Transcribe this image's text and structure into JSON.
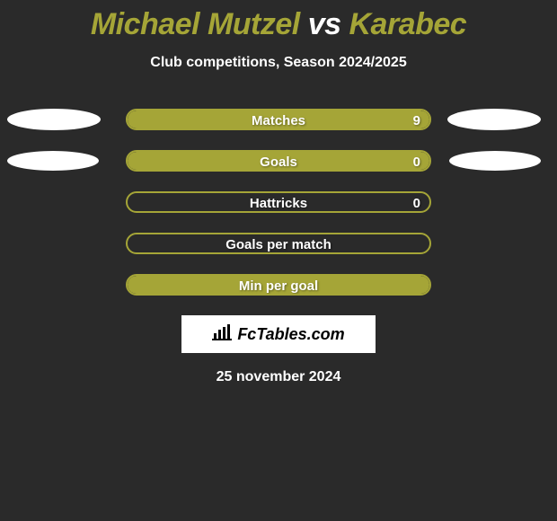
{
  "title": {
    "player1": "Michael Mutzel",
    "vs": "vs",
    "player2": "Karabec",
    "fontsize": 34,
    "color_player": "#a5a537",
    "color_vs": "#ffffff"
  },
  "subtitle": {
    "text": "Club competitions, Season 2024/2025",
    "fontsize": 16,
    "color": "#ffffff"
  },
  "background_color": "#2a2a2a",
  "bar_area": {
    "track_width": 340,
    "track_height": 24,
    "border_radius": 12,
    "label_fontsize": 15
  },
  "rows": [
    {
      "label": "Matches",
      "left_value": null,
      "right_value": "9",
      "left_fill_pct": 0,
      "right_fill_pct": 100,
      "left_fill_color": "#a5a537",
      "right_fill_color": "#a5a537",
      "border_color": "#a5a537",
      "left_ellipse": {
        "width": 104,
        "height": 24,
        "color": "#ffffff"
      },
      "right_ellipse": {
        "width": 104,
        "height": 24,
        "color": "#ffffff"
      }
    },
    {
      "label": "Goals",
      "left_value": null,
      "right_value": "0",
      "left_fill_pct": 0,
      "right_fill_pct": 100,
      "left_fill_color": "#a5a537",
      "right_fill_color": "#a5a537",
      "border_color": "#a5a537",
      "left_ellipse": {
        "width": 102,
        "height": 22,
        "color": "#ffffff"
      },
      "right_ellipse": {
        "width": 102,
        "height": 22,
        "color": "#ffffff"
      }
    },
    {
      "label": "Hattricks",
      "left_value": null,
      "right_value": "0",
      "left_fill_pct": 0,
      "right_fill_pct": 0,
      "left_fill_color": "#a5a537",
      "right_fill_color": "#a5a537",
      "border_color": "#a5a537",
      "left_ellipse": null,
      "right_ellipse": null
    },
    {
      "label": "Goals per match",
      "left_value": null,
      "right_value": null,
      "left_fill_pct": 0,
      "right_fill_pct": 0,
      "left_fill_color": "#a5a537",
      "right_fill_color": "#a5a537",
      "border_color": "#a5a537",
      "left_ellipse": null,
      "right_ellipse": null
    },
    {
      "label": "Min per goal",
      "left_value": null,
      "right_value": null,
      "left_fill_pct": 0,
      "right_fill_pct": 100,
      "left_fill_color": "#a5a537",
      "right_fill_color": "#a5a537",
      "border_color": "#a5a537",
      "left_ellipse": null,
      "right_ellipse": null
    }
  ],
  "brand": {
    "text": "FcTables.com",
    "fontsize": 18,
    "bg_color": "#ffffff",
    "text_color": "#000000",
    "icon_color": "#000000"
  },
  "date": {
    "text": "25 november 2024",
    "fontsize": 16,
    "color": "#ffffff"
  }
}
